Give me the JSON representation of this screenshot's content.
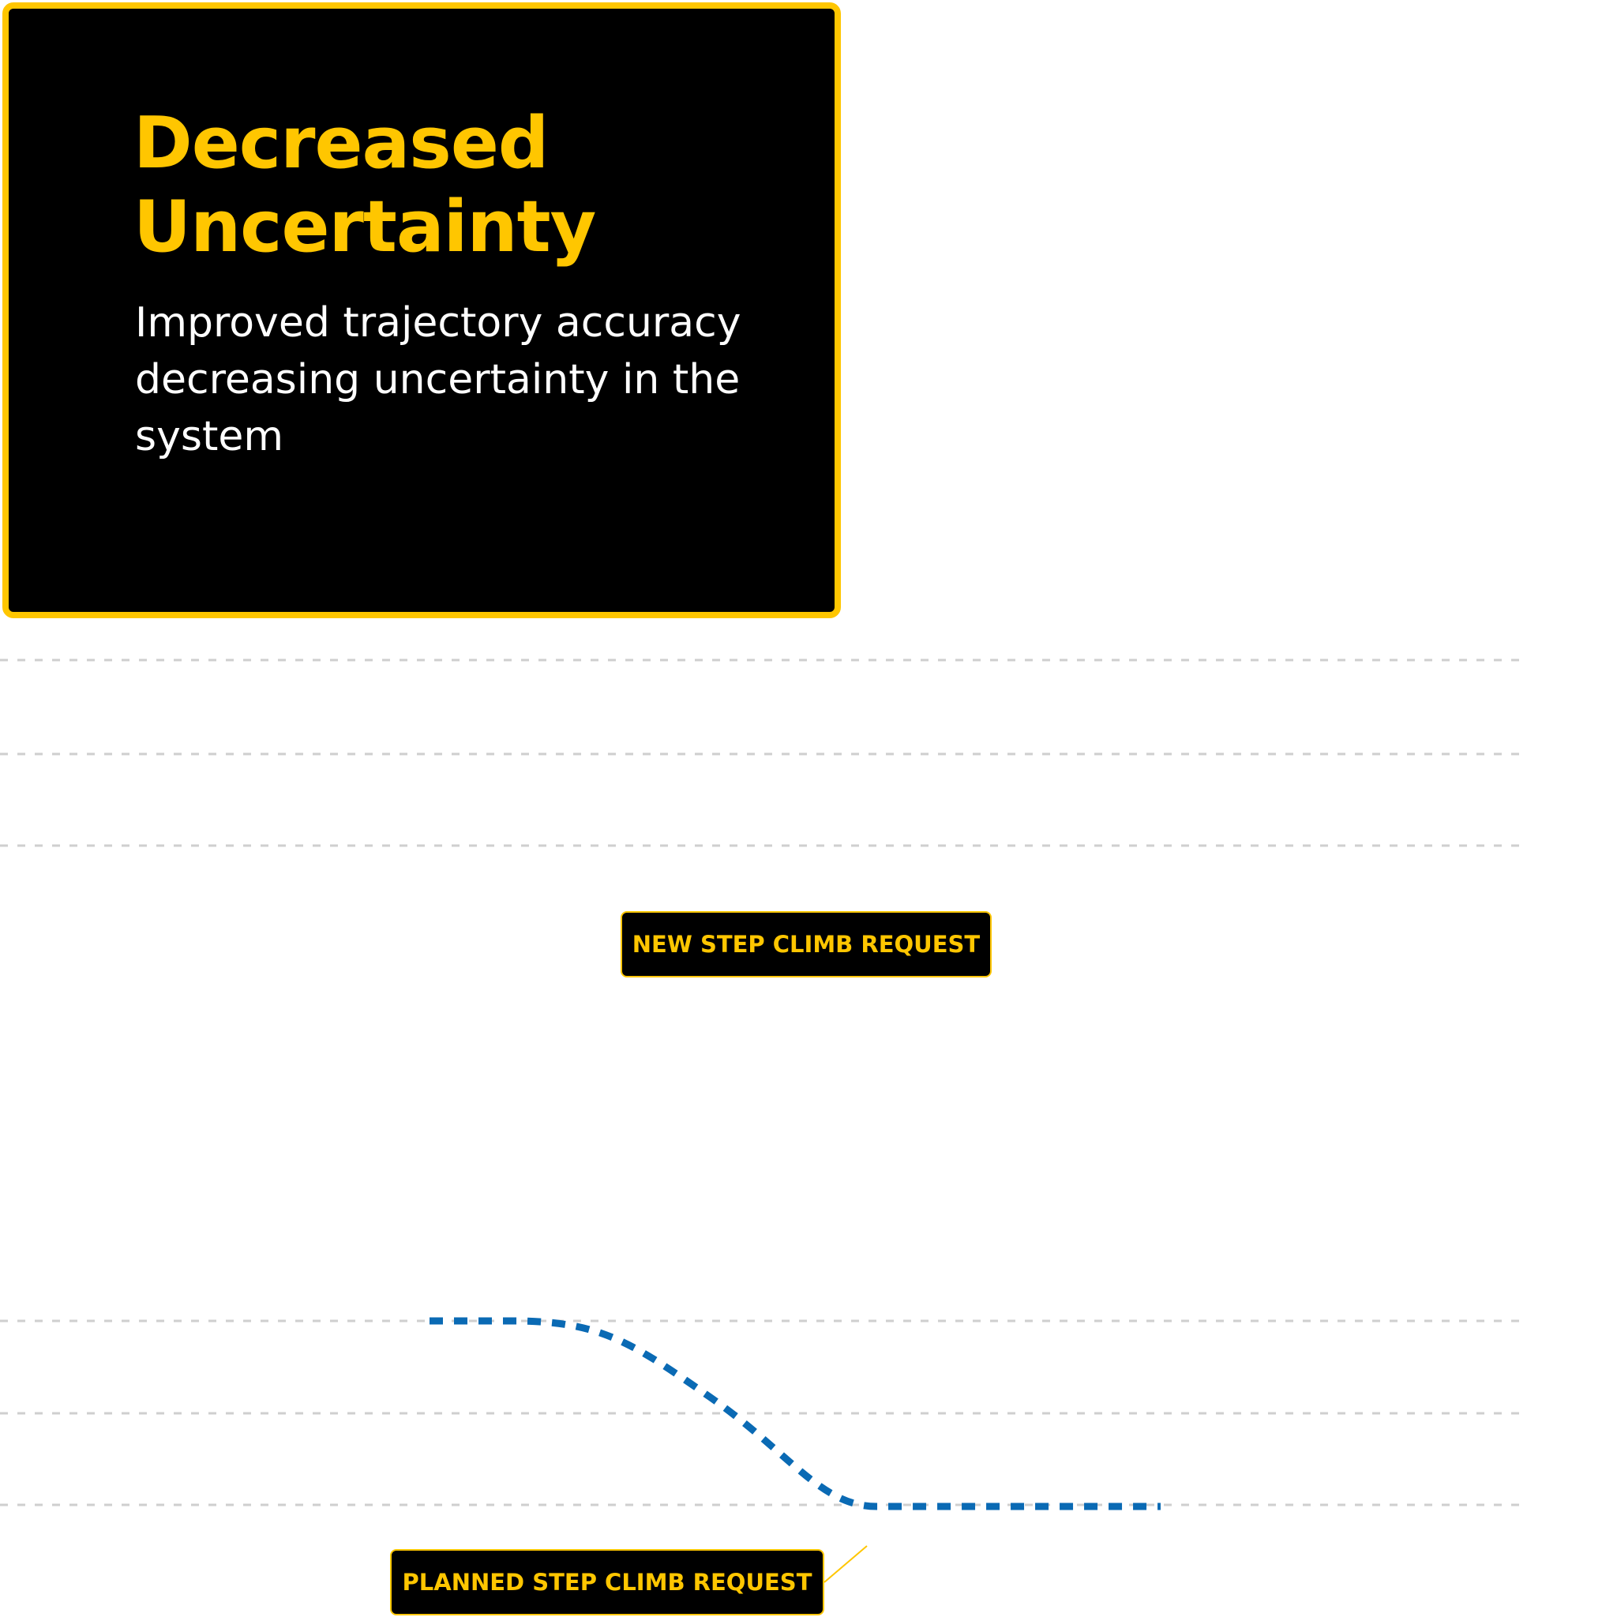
{
  "card": {
    "title_line1": "Decreased",
    "title_line2": "Uncertainty",
    "description": "Improved trajectory accuracy decreasing uncertainty in the system"
  },
  "labels": {
    "new_request": "NEW STEP CLIMB REQUEST",
    "planned_request": "PLANNED STEP CLIMB REQUEST"
  },
  "colors": {
    "accent": "#FFC600",
    "card_background": "#000000",
    "trajectory": "#0A6AB4",
    "gridline": "#cfcfcf"
  }
}
